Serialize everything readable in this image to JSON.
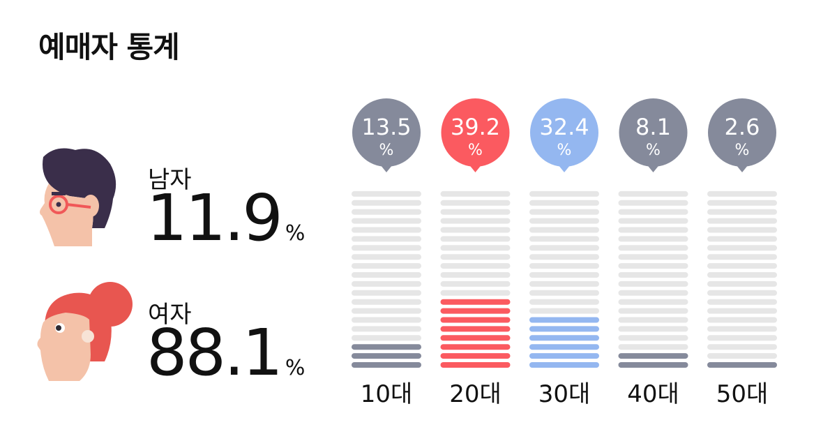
{
  "title": "예매자 통계",
  "gender": {
    "male": {
      "label": "남자",
      "value": "11.9",
      "unit": "%"
    },
    "female": {
      "label": "여자",
      "value": "88.1",
      "unit": "%"
    }
  },
  "colors": {
    "gray": "#858a9b",
    "red": "#fb5a60",
    "blue": "#94b7f0",
    "track": "#e6e6e6",
    "text": "#111111"
  },
  "chart_data": {
    "type": "bar",
    "categories": [
      "10대",
      "20대",
      "30대",
      "40대",
      "50대"
    ],
    "values": [
      13.5,
      39.2,
      32.4,
      8.1,
      2.6
    ],
    "value_unit": "%",
    "bar_colors": [
      "#858a9b",
      "#fb5a60",
      "#94b7f0",
      "#858a9b",
      "#858a9b"
    ],
    "xlabel": "",
    "ylabel": "",
    "ylim": [
      0,
      100
    ],
    "grid": false,
    "legend": "none"
  }
}
